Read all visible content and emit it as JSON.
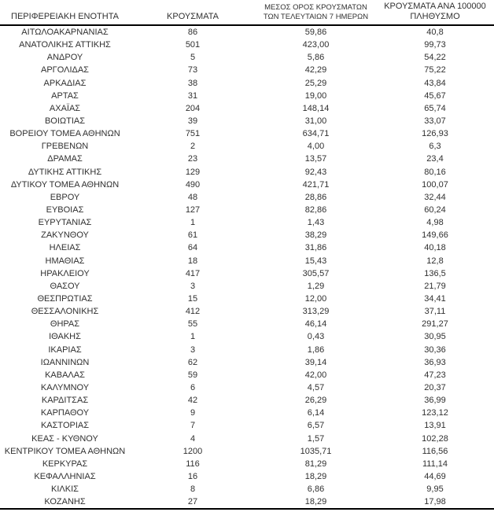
{
  "table": {
    "header": {
      "col1": "ΠΕΡΙΦΕΡΕΙΑΚΗ ΕΝΟΤΗΤΑ",
      "col2": "ΚΡΟΥΣΜΑΤΑ",
      "col3_line1": "ΜΕΣΟΣ ΟΡΟΣ ΚΡΟΥΣΜΑΤΩΝ",
      "col3_line2": "ΤΩΝ ΤΕΛΕΥΤΑΙΩΝ 7 ΗΜΕΡΩΝ",
      "col4_line1": "ΚΡΟΥΣΜΑΤΑ ΑΝΑ 100000",
      "col4_line2": "ΠΛΗΘΥΣΜΟ"
    },
    "rows": [
      {
        "region": "ΑΙΤΩΛΟΑΚΑΡΝΑΝΙΑΣ",
        "cases": "86",
        "avg7": "59,86",
        "per100k": "40,8"
      },
      {
        "region": "ΑΝΑΤΟΛΙΚΗΣ ΑΤΤΙΚΗΣ",
        "cases": "501",
        "avg7": "423,00",
        "per100k": "99,73"
      },
      {
        "region": "ΑΝΔΡΟΥ",
        "cases": "5",
        "avg7": "5,86",
        "per100k": "54,22"
      },
      {
        "region": "ΑΡΓΟΛΙΔΑΣ",
        "cases": "73",
        "avg7": "42,29",
        "per100k": "75,22"
      },
      {
        "region": "ΑΡΚΑΔΙΑΣ",
        "cases": "38",
        "avg7": "25,29",
        "per100k": "43,84"
      },
      {
        "region": "ΑΡΤΑΣ",
        "cases": "31",
        "avg7": "19,00",
        "per100k": "45,67"
      },
      {
        "region": "ΑΧΑΪΑΣ",
        "cases": "204",
        "avg7": "148,14",
        "per100k": "65,74"
      },
      {
        "region": "ΒΟΙΩΤΙΑΣ",
        "cases": "39",
        "avg7": "31,00",
        "per100k": "33,07"
      },
      {
        "region": "ΒΟΡΕΙΟΥ ΤΟΜΕΑ ΑΘΗΝΩΝ",
        "cases": "751",
        "avg7": "634,71",
        "per100k": "126,93"
      },
      {
        "region": "ΓΡΕΒΕΝΩΝ",
        "cases": "2",
        "avg7": "4,00",
        "per100k": "6,3"
      },
      {
        "region": "ΔΡΑΜΑΣ",
        "cases": "23",
        "avg7": "13,57",
        "per100k": "23,4"
      },
      {
        "region": "ΔΥΤΙΚΗΣ ΑΤΤΙΚΗΣ",
        "cases": "129",
        "avg7": "92,43",
        "per100k": "80,16"
      },
      {
        "region": "ΔΥΤΙΚΟΥ ΤΟΜΕΑ ΑΘΗΝΩΝ",
        "cases": "490",
        "avg7": "421,71",
        "per100k": "100,07"
      },
      {
        "region": "ΕΒΡΟΥ",
        "cases": "48",
        "avg7": "28,86",
        "per100k": "32,44"
      },
      {
        "region": "ΕΥΒΟΙΑΣ",
        "cases": "127",
        "avg7": "82,86",
        "per100k": "60,24"
      },
      {
        "region": "ΕΥΡΥΤΑΝΙΑΣ",
        "cases": "1",
        "avg7": "1,43",
        "per100k": "4,98"
      },
      {
        "region": "ΖΑΚΥΝΘΟΥ",
        "cases": "61",
        "avg7": "38,29",
        "per100k": "149,66"
      },
      {
        "region": "ΗΛΕΙΑΣ",
        "cases": "64",
        "avg7": "31,86",
        "per100k": "40,18"
      },
      {
        "region": "ΗΜΑΘΙΑΣ",
        "cases": "18",
        "avg7": "15,43",
        "per100k": "12,8"
      },
      {
        "region": "ΗΡΑΚΛΕΙΟΥ",
        "cases": "417",
        "avg7": "305,57",
        "per100k": "136,5"
      },
      {
        "region": "ΘΑΣΟΥ",
        "cases": "3",
        "avg7": "1,29",
        "per100k": "21,79"
      },
      {
        "region": "ΘΕΣΠΡΩΤΙΑΣ",
        "cases": "15",
        "avg7": "12,00",
        "per100k": "34,41"
      },
      {
        "region": "ΘΕΣΣΑΛΟΝΙΚΗΣ",
        "cases": "412",
        "avg7": "313,29",
        "per100k": "37,11"
      },
      {
        "region": "ΘΗΡΑΣ",
        "cases": "55",
        "avg7": "46,14",
        "per100k": "291,27"
      },
      {
        "region": "ΙΘΑΚΗΣ",
        "cases": "1",
        "avg7": "0,43",
        "per100k": "30,95"
      },
      {
        "region": "ΙΚΑΡΙΑΣ",
        "cases": "3",
        "avg7": "1,86",
        "per100k": "30,36"
      },
      {
        "region": "ΙΩΑΝΝΙΝΩΝ",
        "cases": "62",
        "avg7": "39,14",
        "per100k": "36,93"
      },
      {
        "region": "ΚΑΒΑΛΑΣ",
        "cases": "59",
        "avg7": "42,00",
        "per100k": "47,23"
      },
      {
        "region": "ΚΑΛΥΜΝΟΥ",
        "cases": "6",
        "avg7": "4,57",
        "per100k": "20,37"
      },
      {
        "region": "ΚΑΡΔΙΤΣΑΣ",
        "cases": "42",
        "avg7": "26,29",
        "per100k": "36,99"
      },
      {
        "region": "ΚΑΡΠΑΘΟΥ",
        "cases": "9",
        "avg7": "6,14",
        "per100k": "123,12"
      },
      {
        "region": "ΚΑΣΤΟΡΙΑΣ",
        "cases": "7",
        "avg7": "6,57",
        "per100k": "13,91"
      },
      {
        "region": "ΚΕΑΣ - ΚΥΘΝΟΥ",
        "cases": "4",
        "avg7": "1,57",
        "per100k": "102,28"
      },
      {
        "region": "ΚΕΝΤΡΙΚΟΥ ΤΟΜΕΑ ΑΘΗΝΩΝ",
        "cases": "1200",
        "avg7": "1035,71",
        "per100k": "116,56"
      },
      {
        "region": "ΚΕΡΚΥΡΑΣ",
        "cases": "116",
        "avg7": "81,29",
        "per100k": "111,14"
      },
      {
        "region": "ΚΕΦΑΛΛΗΝΙΑΣ",
        "cases": "16",
        "avg7": "18,29",
        "per100k": "44,69"
      },
      {
        "region": "ΚΙΛΚΙΣ",
        "cases": "8",
        "avg7": "6,86",
        "per100k": "9,95"
      },
      {
        "region": "ΚΟΖΑΝΗΣ",
        "cases": "27",
        "avg7": "18,29",
        "per100k": "17,98"
      }
    ]
  },
  "colors": {
    "text": "#303030",
    "rule": "#000000",
    "background": "#ffffff"
  }
}
